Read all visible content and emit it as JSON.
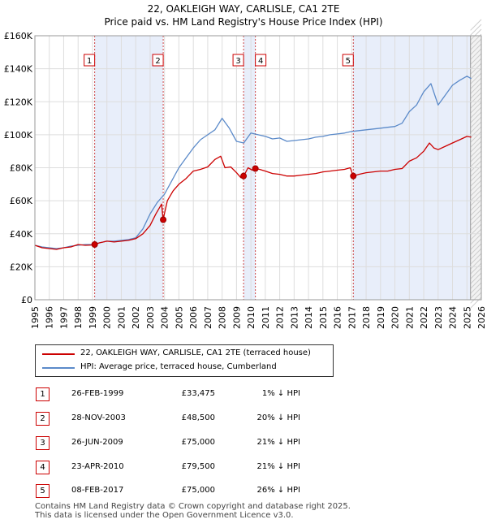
{
  "chart_data": {
    "type": "line",
    "title": "22, OAKLEIGH WAY, CARLISLE, CA1 2TE",
    "subtitle": "Price paid vs. HM Land Registry's House Price Index (HPI)",
    "xlabel": "",
    "ylabel": "",
    "xlim": [
      1995,
      2026
    ],
    "ylim": [
      0,
      160000
    ],
    "y_ticks": [
      {
        "value": 0,
        "label": "£0"
      },
      {
        "value": 20000,
        "label": "£20K"
      },
      {
        "value": 40000,
        "label": "£40K"
      },
      {
        "value": 60000,
        "label": "£60K"
      },
      {
        "value": 80000,
        "label": "£80K"
      },
      {
        "value": 100000,
        "label": "£100K"
      },
      {
        "value": 120000,
        "label": "£120K"
      },
      {
        "value": 140000,
        "label": "£140K"
      },
      {
        "value": 160000,
        "label": "£160K"
      }
    ],
    "x_ticks": [
      "1995",
      "1996",
      "1997",
      "1998",
      "1999",
      "2000",
      "2001",
      "2002",
      "2003",
      "2004",
      "2005",
      "2006",
      "2007",
      "2008",
      "2009",
      "2010",
      "2011",
      "2012",
      "2013",
      "2014",
      "2015",
      "2016",
      "2017",
      "2018",
      "2019",
      "2020",
      "2021",
      "2022",
      "2023",
      "2024",
      "2025",
      "2026"
    ],
    "forecast_from": 2025.25,
    "series": [
      {
        "name": "22, OAKLEIGH WAY, CARLISLE, CA1 2TE (terraced house)",
        "color": "#cc0000",
        "x": [
          1995.0,
          1995.5,
          1996.0,
          1996.5,
          1997.0,
          1997.5,
          1998.0,
          1998.5,
          1999.0,
          1999.15,
          1999.5,
          2000.0,
          2000.5,
          2001.0,
          2001.5,
          2002.0,
          2002.5,
          2003.0,
          2003.4,
          2003.8,
          2003.9,
          2004.2,
          2004.6,
          2005.0,
          2005.5,
          2006.0,
          2006.5,
          2007.0,
          2007.5,
          2007.9,
          2008.2,
          2008.6,
          2009.0,
          2009.3,
          2009.5,
          2009.8,
          2010.1,
          2010.3,
          2010.6,
          2011.0,
          2011.5,
          2012.0,
          2012.5,
          2013.0,
          2013.5,
          2014.0,
          2014.5,
          2015.0,
          2015.5,
          2016.0,
          2016.5,
          2016.9,
          2017.1,
          2017.5,
          2018.0,
          2018.5,
          2019.0,
          2019.5,
          2020.0,
          2020.5,
          2021.0,
          2021.5,
          2022.0,
          2022.4,
          2022.7,
          2023.0,
          2023.5,
          2024.0,
          2024.5,
          2025.0,
          2025.3
        ],
        "values": [
          33000,
          31500,
          31000,
          30500,
          31500,
          32000,
          33500,
          33000,
          33200,
          33475,
          34500,
          35500,
          35000,
          35500,
          36000,
          37000,
          40000,
          45000,
          52000,
          58000,
          48500,
          60000,
          66000,
          70000,
          73500,
          78000,
          79000,
          80500,
          85000,
          87000,
          80000,
          80500,
          77000,
          74000,
          75000,
          80000,
          78500,
          79500,
          79000,
          78000,
          76500,
          76000,
          75000,
          75000,
          75500,
          76000,
          76500,
          77500,
          78000,
          78500,
          79000,
          80000,
          75000,
          76000,
          77000,
          77500,
          78000,
          78000,
          79000,
          79500,
          84000,
          86000,
          90000,
          95000,
          92000,
          91000,
          93000,
          95000,
          97000,
          99000,
          98500
        ],
        "sales": [
          {
            "n": "1",
            "x": 1999.15,
            "y": 33475
          },
          {
            "n": "2",
            "x": 2003.91,
            "y": 48500
          },
          {
            "n": "3",
            "x": 2009.49,
            "y": 75000
          },
          {
            "n": "4",
            "x": 2010.31,
            "y": 79500
          },
          {
            "n": "5",
            "x": 2017.11,
            "y": 75000
          }
        ]
      },
      {
        "name": "HPI: Average price, terraced house, Cumberland",
        "color": "#5b8ac9",
        "x": [
          1995.0,
          1995.5,
          1996.0,
          1996.5,
          1997.0,
          1997.5,
          1998.0,
          1998.5,
          1999.0,
          1999.5,
          2000.0,
          2000.5,
          2001.0,
          2001.5,
          2002.0,
          2002.5,
          2003.0,
          2003.5,
          2004.0,
          2004.5,
          2005.0,
          2005.5,
          2006.0,
          2006.5,
          2007.0,
          2007.5,
          2008.0,
          2008.5,
          2009.0,
          2009.5,
          2010.0,
          2010.5,
          2011.0,
          2011.5,
          2012.0,
          2012.5,
          2013.0,
          2013.5,
          2014.0,
          2014.5,
          2015.0,
          2015.5,
          2016.0,
          2016.5,
          2017.0,
          2017.5,
          2018.0,
          2018.5,
          2019.0,
          2019.5,
          2020.0,
          2020.5,
          2021.0,
          2021.5,
          2022.0,
          2022.5,
          2023.0,
          2023.5,
          2024.0,
          2024.5,
          2025.0,
          2025.3
        ],
        "values": [
          33000,
          32000,
          31500,
          31000,
          31500,
          32500,
          33000,
          33500,
          33500,
          34500,
          35500,
          35500,
          36000,
          36500,
          37500,
          43000,
          52000,
          59000,
          64000,
          72000,
          80000,
          86000,
          92000,
          97000,
          100000,
          103000,
          110000,
          104000,
          96000,
          95000,
          101000,
          100000,
          99000,
          97500,
          98000,
          96000,
          96500,
          97000,
          97500,
          98500,
          99000,
          100000,
          100500,
          101000,
          102000,
          102500,
          103000,
          103500,
          104000,
          104500,
          105000,
          107000,
          114000,
          118000,
          126000,
          131000,
          118000,
          124000,
          130000,
          133000,
          135500,
          134000
        ]
      }
    ]
  },
  "legend": [
    {
      "label": "22, OAKLEIGH WAY, CARLISLE, CA1 2TE (terraced house)",
      "color": "#cc0000"
    },
    {
      "label": "HPI: Average price, terraced house, Cumberland",
      "color": "#5b8ac9"
    }
  ],
  "transactions": [
    {
      "num": "1",
      "date": "26-FEB-1999",
      "price": "£33,475",
      "hpi": "1% ↓ HPI"
    },
    {
      "num": "2",
      "date": "28-NOV-2003",
      "price": "£48,500",
      "hpi": "20% ↓ HPI"
    },
    {
      "num": "3",
      "date": "26-JUN-2009",
      "price": "£75,000",
      "hpi": "21% ↓ HPI"
    },
    {
      "num": "4",
      "date": "23-APR-2010",
      "price": "£79,500",
      "hpi": "21% ↓ HPI"
    },
    {
      "num": "5",
      "date": "08-FEB-2017",
      "price": "£75,000",
      "hpi": "26% ↓ HPI"
    }
  ],
  "footer": {
    "line1": "Contains HM Land Registry data © Crown copyright and database right 2025.",
    "line2": "This data is licensed under the Open Government Licence v3.0."
  }
}
